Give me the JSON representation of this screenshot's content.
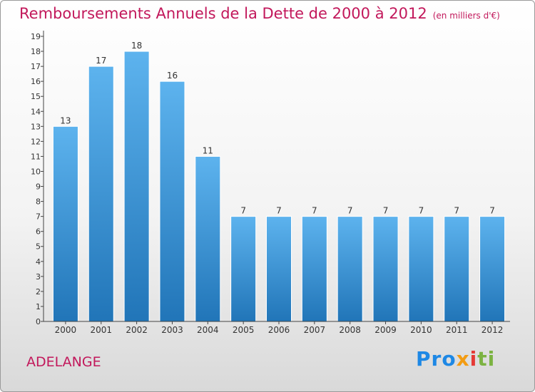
{
  "header": {
    "title": "Remboursements Annuels de la Dette de 2000 à 2012",
    "subtitle": "(en milliers d'€)"
  },
  "footer": {
    "town": "ADELANGE",
    "logo_parts": [
      "Pro",
      "x",
      "i",
      "ti"
    ]
  },
  "colors": {
    "title": "#c2185b",
    "bar_top": "#5db3ee",
    "bar_bottom": "#2175b8",
    "axis": "#444444"
  },
  "chart_data": {
    "type": "bar",
    "title": "Remboursements Annuels de la Dette de 2000 à 2012",
    "subtitle": "(en milliers d'€)",
    "xlabel": "",
    "ylabel": "",
    "categories": [
      "2000",
      "2001",
      "2002",
      "2003",
      "2004",
      "2005",
      "2006",
      "2007",
      "2008",
      "2009",
      "2010",
      "2011",
      "2012"
    ],
    "values": [
      13,
      17,
      18,
      16,
      11,
      7,
      7,
      7,
      7,
      7,
      7,
      7,
      7
    ],
    "ylim": [
      0,
      19
    ],
    "yticks": [
      0,
      1,
      2,
      3,
      4,
      5,
      6,
      7,
      8,
      9,
      10,
      11,
      12,
      13,
      14,
      15,
      16,
      17,
      18,
      19
    ],
    "grid": false,
    "legend": "none",
    "data_labels": true
  }
}
